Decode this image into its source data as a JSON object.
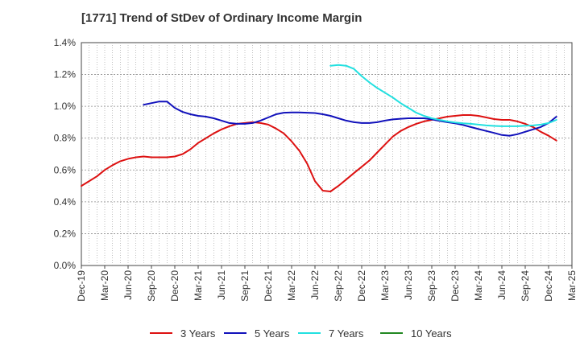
{
  "chart_data": {
    "type": "line",
    "title": "[1771]  Trend of StDev of Ordinary Income Margin",
    "xlabel": "",
    "ylabel": "",
    "ylim": [
      0,
      1.4
    ],
    "y_ticks": [
      0,
      0.2,
      0.4,
      0.6,
      0.8,
      1.0,
      1.2,
      1.4
    ],
    "y_tick_labels": [
      "0.0%",
      "0.2%",
      "0.4%",
      "0.6%",
      "0.8%",
      "1.0%",
      "1.2%",
      "1.4%"
    ],
    "x_tick_labels": [
      "Dec-19",
      "Mar-20",
      "Jun-20",
      "Sep-20",
      "Dec-20",
      "Mar-21",
      "Jun-21",
      "Sep-21",
      "Dec-21",
      "Mar-22",
      "Jun-22",
      "Sep-22",
      "Dec-22",
      "Mar-23",
      "Jun-23",
      "Sep-23",
      "Dec-23",
      "Mar-24",
      "Jun-24",
      "Sep-24",
      "Dec-24",
      "Mar-25"
    ],
    "grid": true,
    "legend_position": "bottom",
    "series": [
      {
        "name": "3 Years",
        "color": "#dd1111",
        "points": [
          [
            "Dec-19",
            0.5
          ],
          [
            "Jan-20",
            0.53
          ],
          [
            "Feb-20",
            0.56
          ],
          [
            "Mar-20",
            0.6
          ],
          [
            "Apr-20",
            0.63
          ],
          [
            "May-20",
            0.655
          ],
          [
            "Jun-20",
            0.67
          ],
          [
            "Jul-20",
            0.68
          ],
          [
            "Aug-20",
            0.685
          ],
          [
            "Sep-20",
            0.68
          ],
          [
            "Oct-20",
            0.68
          ],
          [
            "Nov-20",
            0.68
          ],
          [
            "Dec-20",
            0.685
          ],
          [
            "Jan-21",
            0.7
          ],
          [
            "Feb-21",
            0.73
          ],
          [
            "Mar-21",
            0.77
          ],
          [
            "Apr-21",
            0.8
          ],
          [
            "May-21",
            0.83
          ],
          [
            "Jun-21",
            0.855
          ],
          [
            "Jul-21",
            0.875
          ],
          [
            "Aug-21",
            0.89
          ],
          [
            "Sep-21",
            0.895
          ],
          [
            "Oct-21",
            0.9
          ],
          [
            "Nov-21",
            0.895
          ],
          [
            "Dec-21",
            0.885
          ],
          [
            "Jan-22",
            0.86
          ],
          [
            "Feb-22",
            0.83
          ],
          [
            "Mar-22",
            0.78
          ],
          [
            "Apr-22",
            0.72
          ],
          [
            "May-22",
            0.64
          ],
          [
            "Jun-22",
            0.53
          ],
          [
            "Jul-22",
            0.47
          ],
          [
            "Aug-22",
            0.465
          ],
          [
            "Sep-22",
            0.5
          ],
          [
            "Oct-22",
            0.54
          ],
          [
            "Nov-22",
            0.58
          ],
          [
            "Dec-22",
            0.62
          ],
          [
            "Jan-23",
            0.66
          ],
          [
            "Feb-23",
            0.71
          ],
          [
            "Mar-23",
            0.76
          ],
          [
            "Apr-23",
            0.81
          ],
          [
            "May-23",
            0.845
          ],
          [
            "Jun-23",
            0.87
          ],
          [
            "Jul-23",
            0.89
          ],
          [
            "Aug-23",
            0.905
          ],
          [
            "Sep-23",
            0.915
          ],
          [
            "Oct-23",
            0.925
          ],
          [
            "Nov-23",
            0.935
          ],
          [
            "Dec-23",
            0.94
          ],
          [
            "Jan-24",
            0.945
          ],
          [
            "Feb-24",
            0.945
          ],
          [
            "Mar-24",
            0.94
          ],
          [
            "Apr-24",
            0.93
          ],
          [
            "May-24",
            0.92
          ],
          [
            "Jun-24",
            0.915
          ],
          [
            "Jul-24",
            0.915
          ],
          [
            "Aug-24",
            0.905
          ],
          [
            "Sep-24",
            0.89
          ],
          [
            "Oct-24",
            0.87
          ],
          [
            "Nov-24",
            0.84
          ],
          [
            "Dec-24",
            0.815
          ],
          [
            "Jan-25",
            0.785
          ]
        ]
      },
      {
        "name": "5 Years",
        "color": "#1111bb",
        "points": [
          [
            "Aug-20",
            1.01
          ],
          [
            "Sep-20",
            1.02
          ],
          [
            "Oct-20",
            1.03
          ],
          [
            "Nov-20",
            1.03
          ],
          [
            "Dec-20",
            0.99
          ],
          [
            "Jan-21",
            0.965
          ],
          [
            "Feb-21",
            0.95
          ],
          [
            "Mar-21",
            0.94
          ],
          [
            "Apr-21",
            0.935
          ],
          [
            "May-21",
            0.925
          ],
          [
            "Jun-21",
            0.91
          ],
          [
            "Jul-21",
            0.895
          ],
          [
            "Aug-21",
            0.89
          ],
          [
            "Sep-21",
            0.89
          ],
          [
            "Oct-21",
            0.895
          ],
          [
            "Nov-21",
            0.91
          ],
          [
            "Dec-21",
            0.93
          ],
          [
            "Jan-22",
            0.95
          ],
          [
            "Feb-22",
            0.96
          ],
          [
            "Mar-22",
            0.962
          ],
          [
            "Apr-22",
            0.962
          ],
          [
            "May-22",
            0.96
          ],
          [
            "Jun-22",
            0.958
          ],
          [
            "Jul-22",
            0.95
          ],
          [
            "Aug-22",
            0.94
          ],
          [
            "Sep-22",
            0.925
          ],
          [
            "Oct-22",
            0.91
          ],
          [
            "Nov-22",
            0.9
          ],
          [
            "Dec-22",
            0.895
          ],
          [
            "Jan-23",
            0.895
          ],
          [
            "Feb-23",
            0.9
          ],
          [
            "Mar-23",
            0.91
          ],
          [
            "Apr-23",
            0.918
          ],
          [
            "May-23",
            0.922
          ],
          [
            "Jun-23",
            0.925
          ],
          [
            "Jul-23",
            0.925
          ],
          [
            "Aug-23",
            0.925
          ],
          [
            "Sep-23",
            0.918
          ],
          [
            "Oct-23",
            0.908
          ],
          [
            "Nov-23",
            0.9
          ],
          [
            "Dec-23",
            0.893
          ],
          [
            "Jan-24",
            0.883
          ],
          [
            "Feb-24",
            0.87
          ],
          [
            "Mar-24",
            0.857
          ],
          [
            "Apr-24",
            0.845
          ],
          [
            "May-24",
            0.833
          ],
          [
            "Jun-24",
            0.82
          ],
          [
            "Jul-24",
            0.815
          ],
          [
            "Aug-24",
            0.825
          ],
          [
            "Sep-24",
            0.84
          ],
          [
            "Oct-24",
            0.855
          ],
          [
            "Nov-24",
            0.87
          ],
          [
            "Dec-24",
            0.895
          ],
          [
            "Jan-25",
            0.935
          ]
        ]
      },
      {
        "name": "7 Years",
        "color": "#22e0e0",
        "points": [
          [
            "Aug-22",
            1.255
          ],
          [
            "Sep-22",
            1.26
          ],
          [
            "Oct-22",
            1.255
          ],
          [
            "Nov-22",
            1.235
          ],
          [
            "Dec-22",
            1.19
          ],
          [
            "Jan-23",
            1.15
          ],
          [
            "Feb-23",
            1.115
          ],
          [
            "Mar-23",
            1.085
          ],
          [
            "Apr-23",
            1.055
          ],
          [
            "May-23",
            1.02
          ],
          [
            "Jun-23",
            0.99
          ],
          [
            "Jul-23",
            0.96
          ],
          [
            "Aug-23",
            0.94
          ],
          [
            "Sep-23",
            0.925
          ],
          [
            "Oct-23",
            0.915
          ],
          [
            "Nov-23",
            0.905
          ],
          [
            "Dec-23",
            0.898
          ],
          [
            "Jan-24",
            0.893
          ],
          [
            "Feb-24",
            0.89
          ],
          [
            "Mar-24",
            0.885
          ],
          [
            "Apr-24",
            0.88
          ],
          [
            "May-24",
            0.877
          ],
          [
            "Jun-24",
            0.875
          ],
          [
            "Jul-24",
            0.875
          ],
          [
            "Aug-24",
            0.875
          ],
          [
            "Sep-24",
            0.878
          ],
          [
            "Oct-24",
            0.88
          ],
          [
            "Nov-24",
            0.885
          ],
          [
            "Dec-24",
            0.895
          ],
          [
            "Jan-25",
            0.915
          ]
        ]
      },
      {
        "name": "10 Years",
        "color": "#228822",
        "points": []
      }
    ]
  }
}
